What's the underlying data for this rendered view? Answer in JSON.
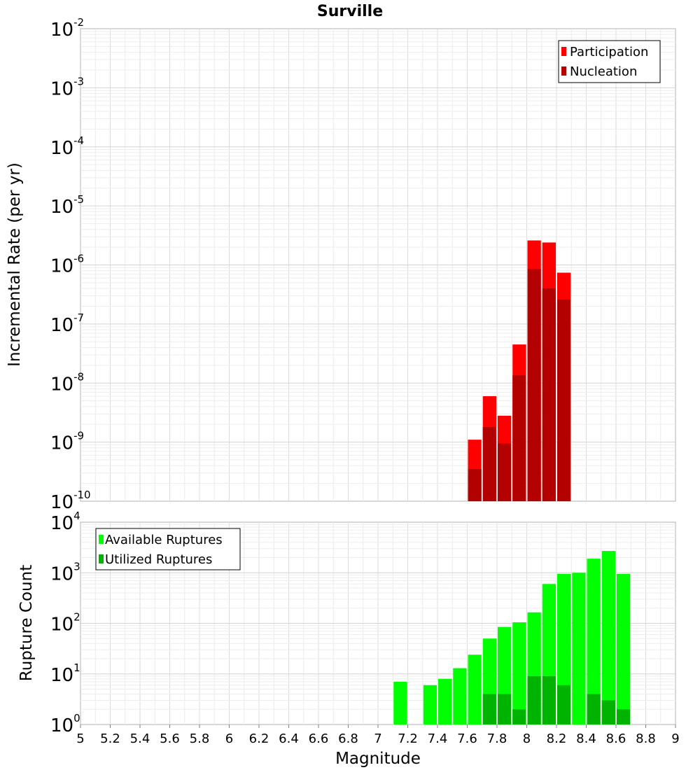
{
  "chart_data": [
    {
      "type": "bar",
      "title": "Surville",
      "xlabel": "",
      "ylabel": "Incremental Rate (per yr)",
      "yscale": "log",
      "ylim_exponents": [
        -10,
        -2
      ],
      "xlim": [
        5,
        9
      ],
      "bin_width": 0.1,
      "grid": true,
      "legend_position": "top-right",
      "series": [
        {
          "name": "Participation",
          "color": "#ff0000",
          "x": [
            7.65,
            7.75,
            7.85,
            7.95,
            8.05,
            8.15,
            8.25
          ],
          "values": [
            1.1e-09,
            6e-09,
            2.8e-09,
            4.5e-08,
            2.6e-06,
            2.4e-06,
            7.4e-07
          ]
        },
        {
          "name": "Nucleation",
          "color": "#b30000",
          "x": [
            7.65,
            7.75,
            7.85,
            7.95,
            8.05,
            8.15,
            8.25
          ],
          "values": [
            3.5e-10,
            1.8e-09,
            9.5e-10,
            1.35e-08,
            8.5e-07,
            4e-07,
            2.6e-07
          ]
        }
      ]
    },
    {
      "type": "bar",
      "title": "",
      "xlabel": "Magnitude",
      "ylabel": "Rupture Count",
      "yscale": "log",
      "ylim_exponents": [
        0,
        4
      ],
      "xlim": [
        5,
        9
      ],
      "bin_width": 0.1,
      "grid": true,
      "legend_position": "top-left",
      "x_ticks": [
        "5",
        "5.2",
        "5.4",
        "5.6",
        "5.8",
        "6",
        "6.2",
        "6.4",
        "6.6",
        "6.8",
        "7",
        "7.2",
        "7.4",
        "7.6",
        "7.8",
        "8",
        "8.2",
        "8.4",
        "8.6",
        "8.8",
        "9"
      ],
      "series": [
        {
          "name": "Available Ruptures",
          "color": "#00ff00",
          "x": [
            7.15,
            7.35,
            7.45,
            7.55,
            7.65,
            7.75,
            7.85,
            7.95,
            8.05,
            8.15,
            8.25,
            8.35,
            8.45,
            8.55,
            8.65
          ],
          "values": [
            7,
            6,
            8,
            13,
            24,
            50,
            85,
            105,
            165,
            600,
            950,
            1000,
            1900,
            2700,
            950
          ]
        },
        {
          "name": "Utilized Ruptures",
          "color": "#00b300",
          "x": [
            7.65,
            7.75,
            7.85,
            7.95,
            8.05,
            8.15,
            8.25,
            8.35,
            8.45,
            8.55,
            8.65
          ],
          "values": [
            1,
            4,
            4,
            2,
            9,
            9,
            6,
            1,
            4,
            3,
            2
          ]
        }
      ]
    }
  ]
}
